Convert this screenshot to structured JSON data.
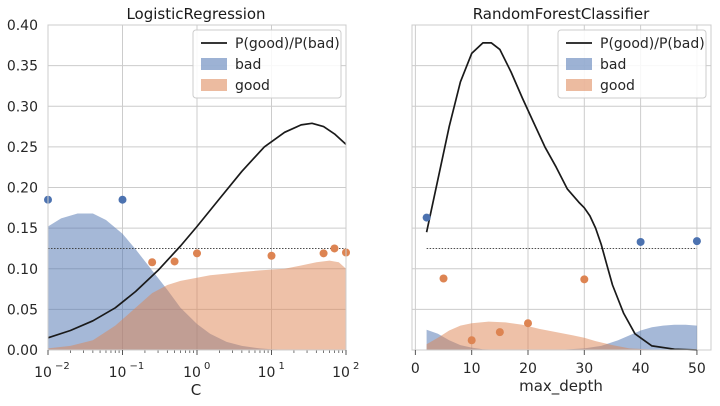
{
  "colors": {
    "bad": "#4c72b0",
    "good": "#dd8452",
    "ratio_line": "#1a1a1a",
    "grid": "#cccccc",
    "reference": "#333333"
  },
  "chart_data": [
    {
      "type": "area",
      "title": "LogisticRegression",
      "xlabel": "C",
      "ylabel": "",
      "xscale": "log",
      "xlim": [
        0.01,
        100
      ],
      "ylim": [
        0,
        0.4
      ],
      "x_ticks": [
        {
          "base": "10",
          "exp": "−2",
          "value": 0.01
        },
        {
          "base": "10",
          "exp": "−1",
          "value": 0.1
        },
        {
          "base": "10",
          "exp": "0",
          "value": 1
        },
        {
          "base": "10",
          "exp": "1",
          "value": 10
        },
        {
          "base": "10",
          "exp": "2",
          "value": 100
        }
      ],
      "y_ticks": [
        "0.00",
        "0.05",
        "0.10",
        "0.15",
        "0.20",
        "0.25",
        "0.30",
        "0.35",
        "0.40"
      ],
      "legend": {
        "position": "top-right",
        "entries": [
          "P(good)/P(bad)",
          "bad",
          "good"
        ]
      },
      "grid": true,
      "reference_line": 0.125,
      "series": [
        {
          "name": "bad",
          "kind": "area",
          "x": [
            0.01,
            0.015,
            0.025,
            0.04,
            0.06,
            0.1,
            0.15,
            0.25,
            0.4,
            0.6,
            1,
            1.5,
            2.5,
            4,
            7,
            10,
            20,
            50,
            100
          ],
          "y": [
            0.152,
            0.162,
            0.168,
            0.168,
            0.16,
            0.143,
            0.124,
            0.098,
            0.074,
            0.052,
            0.032,
            0.02,
            0.01,
            0.005,
            0.002,
            0.001,
            0,
            0,
            0
          ]
        },
        {
          "name": "good",
          "kind": "area",
          "x": [
            0.01,
            0.02,
            0.04,
            0.08,
            0.15,
            0.25,
            0.4,
            0.6,
            1,
            1.5,
            2.5,
            4,
            7,
            10,
            15,
            25,
            40,
            60,
            80,
            100
          ],
          "y": [
            0.002,
            0.005,
            0.012,
            0.03,
            0.052,
            0.07,
            0.08,
            0.085,
            0.089,
            0.092,
            0.094,
            0.096,
            0.098,
            0.099,
            0.1,
            0.104,
            0.108,
            0.11,
            0.108,
            0.1
          ]
        },
        {
          "name": "P(good)/P(bad)",
          "kind": "line",
          "x": [
            0.01,
            0.02,
            0.04,
            0.08,
            0.15,
            0.3,
            0.6,
            1,
            2,
            4,
            8,
            15,
            25,
            35,
            50,
            70,
            100
          ],
          "y": [
            0.015,
            0.024,
            0.036,
            0.052,
            0.072,
            0.098,
            0.128,
            0.152,
            0.186,
            0.22,
            0.25,
            0.268,
            0.277,
            0.279,
            0.275,
            0.266,
            0.253
          ]
        },
        {
          "name": "bad_points",
          "kind": "scatter",
          "color_key": "bad",
          "x": [
            0.01,
            0.1
          ],
          "y": [
            0.185,
            0.185
          ]
        },
        {
          "name": "good_points",
          "kind": "scatter",
          "color_key": "good",
          "x": [
            0.25,
            0.5,
            1,
            10,
            50,
            70,
            100
          ],
          "y": [
            0.108,
            0.109,
            0.119,
            0.116,
            0.119,
            0.125,
            0.12
          ]
        }
      ]
    },
    {
      "type": "area",
      "title": "RandomForestClassifier",
      "xlabel": "max_depth",
      "ylabel": "",
      "xscale": "linear",
      "xlim": [
        -0.6,
        52.5
      ],
      "ylim": [
        0,
        0.4
      ],
      "x_ticks": [
        {
          "label": "0",
          "value": 0
        },
        {
          "label": "10",
          "value": 10
        },
        {
          "label": "20",
          "value": 20
        },
        {
          "label": "30",
          "value": 30
        },
        {
          "label": "40",
          "value": 40
        },
        {
          "label": "50",
          "value": 50
        }
      ],
      "y_ticks": [],
      "legend": {
        "position": "top-right",
        "entries": [
          "P(good)/P(bad)",
          "bad",
          "good"
        ]
      },
      "grid": true,
      "reference_line": 0.125,
      "series": [
        {
          "name": "bad",
          "kind": "area",
          "x": [
            2,
            4,
            6,
            8,
            10,
            12,
            16,
            20,
            25,
            30,
            33,
            36,
            38,
            40,
            42,
            44,
            46,
            48,
            50
          ],
          "y": [
            0.025,
            0.02,
            0.012,
            0.006,
            0.003,
            0.001,
            0,
            0,
            0,
            0.002,
            0.005,
            0.012,
            0.018,
            0.024,
            0.028,
            0.03,
            0.031,
            0.031,
            0.03
          ]
        },
        {
          "name": "good",
          "kind": "area",
          "x": [
            2,
            4,
            6,
            8,
            10,
            13,
            16,
            19,
            22,
            25,
            28,
            30,
            32,
            35,
            38,
            41,
            44,
            47,
            50
          ],
          "y": [
            0.007,
            0.015,
            0.024,
            0.03,
            0.033,
            0.035,
            0.034,
            0.031,
            0.026,
            0.022,
            0.018,
            0.015,
            0.011,
            0.006,
            0.002,
            0.001,
            0,
            0,
            0
          ]
        },
        {
          "name": "P(good)/P(bad)",
          "kind": "line",
          "x": [
            2,
            4,
            6,
            8,
            10,
            12,
            13.5,
            15,
            17,
            19,
            21,
            23,
            25,
            27,
            29,
            30,
            31,
            32,
            33,
            34,
            35,
            37,
            39,
            42,
            46,
            50
          ],
          "y": [
            0.145,
            0.21,
            0.275,
            0.33,
            0.365,
            0.378,
            0.378,
            0.37,
            0.342,
            0.31,
            0.28,
            0.25,
            0.225,
            0.198,
            0.182,
            0.175,
            0.165,
            0.15,
            0.13,
            0.105,
            0.08,
            0.045,
            0.02,
            0.005,
            0.001,
            0
          ]
        },
        {
          "name": "bad_points",
          "kind": "scatter",
          "color_key": "bad",
          "x": [
            2,
            40,
            50
          ],
          "y": [
            0.163,
            0.133,
            0.134
          ]
        },
        {
          "name": "good_points",
          "kind": "scatter",
          "color_key": "good",
          "x": [
            5,
            10,
            15,
            20,
            30
          ],
          "y": [
            0.088,
            0.012,
            0.022,
            0.033,
            0.087
          ]
        }
      ]
    }
  ]
}
